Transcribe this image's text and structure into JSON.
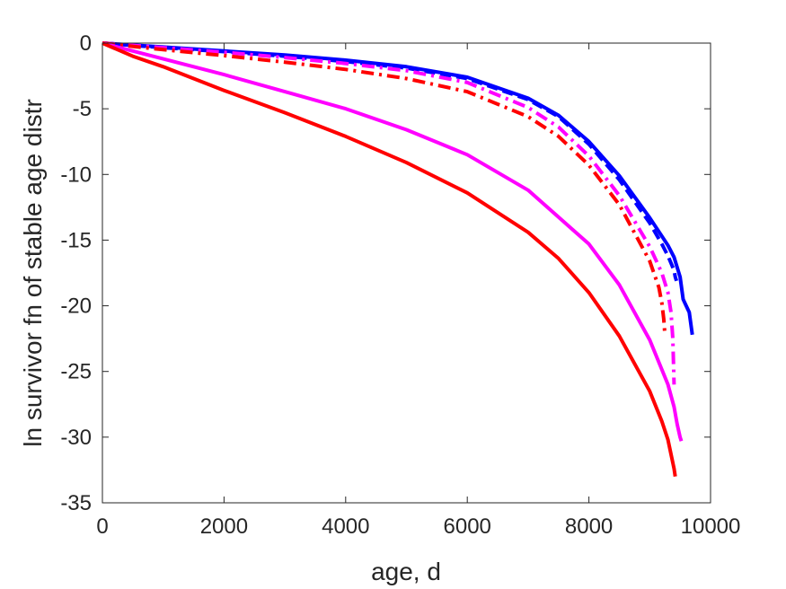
{
  "chart_data": {
    "type": "line",
    "title": "",
    "xlabel": "age, d",
    "ylabel": "ln survivor fn of stable age distr",
    "xlim": [
      0,
      10000
    ],
    "ylim": [
      -35,
      0
    ],
    "xticks": [
      0,
      2000,
      4000,
      6000,
      8000,
      10000
    ],
    "xtick_labels": [
      "0",
      "2000",
      "4000",
      "6000",
      "8000",
      "10000"
    ],
    "yticks": [
      0,
      -5,
      -10,
      -15,
      -20,
      -25,
      -30,
      -35
    ],
    "ytick_labels": [
      "0",
      "-5",
      "-10",
      "-15",
      "-20",
      "-25",
      "-30",
      "-35"
    ],
    "grid": false,
    "series": [
      {
        "color": "#0000ff",
        "style": "solid",
        "x": [
          0,
          1000,
          2000,
          3000,
          4000,
          5000,
          6000,
          7000,
          7500,
          8000,
          8500,
          9000,
          9300,
          9400,
          9500,
          9550,
          9600,
          9650,
          9680,
          9700
        ],
        "y": [
          0,
          -0.3,
          -0.6,
          -0.9,
          -1.3,
          -1.8,
          -2.6,
          -4.2,
          -5.5,
          -7.5,
          -10.1,
          -13.3,
          -15.4,
          -16.3,
          -17.8,
          -19.5,
          -20.0,
          -20.5,
          -21.5,
          -22.2
        ]
      },
      {
        "color": "#0000ff",
        "style": "dashed",
        "x": [
          0,
          1000,
          2000,
          3000,
          4000,
          5000,
          6000,
          7000,
          7500,
          8000,
          8500,
          9000,
          9200,
          9300,
          9400,
          9420,
          9440
        ],
        "y": [
          0,
          -0.35,
          -0.65,
          -1.0,
          -1.4,
          -1.9,
          -2.7,
          -4.3,
          -5.6,
          -7.7,
          -10.4,
          -13.7,
          -15.3,
          -16.2,
          -17.3,
          -17.8,
          -18.1
        ]
      },
      {
        "color": "#ff00ff",
        "style": "dashdot",
        "x": [
          0,
          1000,
          2000,
          3000,
          4000,
          5000,
          6000,
          7000,
          7500,
          8000,
          8500,
          9000,
          9200,
          9300,
          9350,
          9380,
          9400
        ],
        "y": [
          0,
          -0.35,
          -0.7,
          -1.1,
          -1.55,
          -2.1,
          -3.0,
          -4.9,
          -6.4,
          -8.6,
          -11.6,
          -15.5,
          -17.5,
          -19.0,
          -20.5,
          -22.5,
          -26.0
        ]
      },
      {
        "color": "#ff0000",
        "style": "dashdot",
        "x": [
          0,
          1000,
          2000,
          3000,
          4000,
          5000,
          6000,
          7000,
          7500,
          8000,
          8500,
          9000,
          9150,
          9200,
          9230,
          9250
        ],
        "y": [
          0,
          -0.5,
          -0.95,
          -1.45,
          -2.0,
          -2.7,
          -3.7,
          -5.6,
          -7.1,
          -9.3,
          -12.3,
          -16.6,
          -18.6,
          -19.8,
          -21.0,
          -22.2
        ]
      },
      {
        "color": "#ff00ff",
        "style": "solid",
        "x": [
          0,
          1000,
          2000,
          3000,
          4000,
          5000,
          6000,
          7000,
          8000,
          8500,
          9000,
          9300,
          9400,
          9450,
          9500,
          9520
        ],
        "y": [
          0,
          -1.2,
          -2.4,
          -3.7,
          -5.0,
          -6.6,
          -8.5,
          -11.2,
          -15.3,
          -18.4,
          -22.6,
          -26.0,
          -27.7,
          -29.0,
          -30.0,
          -30.3
        ]
      },
      {
        "color": "#ff0000",
        "style": "solid",
        "x": [
          0,
          500,
          1000,
          2000,
          3000,
          4000,
          5000,
          6000,
          7000,
          7500,
          8000,
          8500,
          9000,
          9200,
          9300,
          9350,
          9400,
          9420
        ],
        "y": [
          0,
          -1.0,
          -1.8,
          -3.6,
          -5.3,
          -7.1,
          -9.1,
          -11.4,
          -14.4,
          -16.4,
          -19.0,
          -22.3,
          -26.5,
          -28.8,
          -30.2,
          -31.3,
          -32.4,
          -33.0
        ]
      }
    ]
  }
}
